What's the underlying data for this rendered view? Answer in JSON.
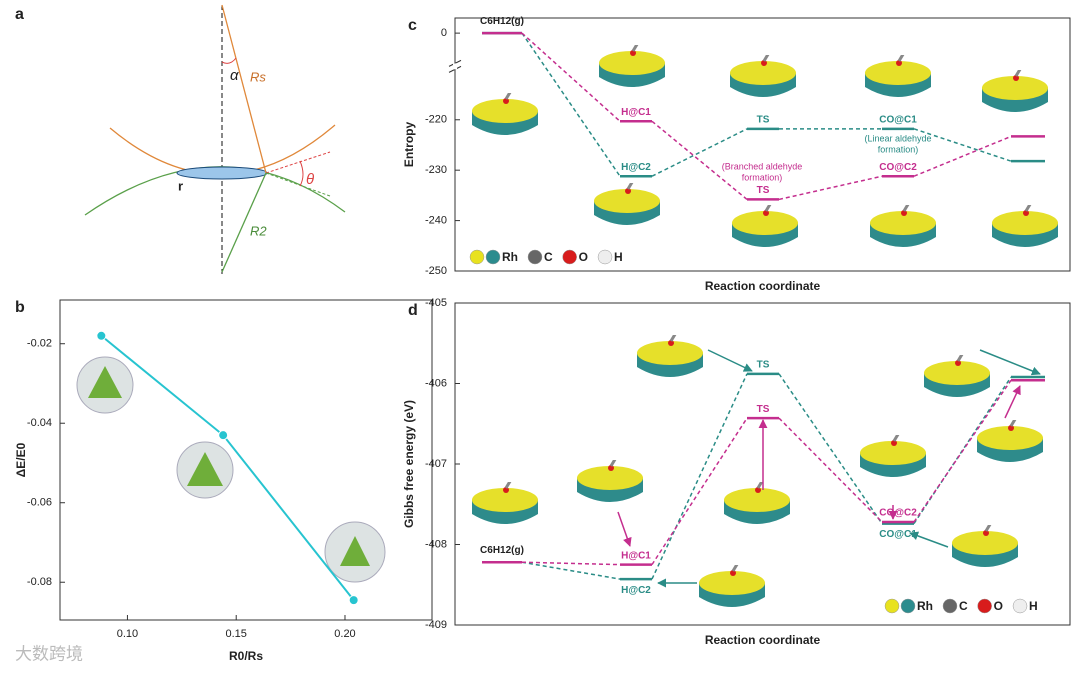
{
  "panel_a": {
    "label": "a",
    "alpha": "α",
    "Rs": "Rs",
    "theta": "θ",
    "r": "r",
    "R2": "R2"
  },
  "chart_data": [
    {
      "panel_label": "b",
      "type": "line",
      "x_label": "R0/Rs",
      "y_label": "ΔE/E0",
      "x": [
        0.088,
        0.144,
        0.204
      ],
      "values": [
        -0.018,
        -0.043,
        -0.0845
      ],
      "color": "#27c4d0",
      "xlim": [
        0.069,
        0.24
      ],
      "ylim": [
        -0.0895,
        -0.009
      ],
      "xticks": [
        {
          "value": 0.1,
          "label": "0.10"
        },
        0.15,
        {
          "value": 0.2,
          "label": "0.20"
        }
      ],
      "yticks": [
        -0.02,
        -0.04,
        -0.06,
        -0.08
      ]
    },
    {
      "panel_label": "c",
      "type": "energy-diagram",
      "y_label": "Entropy",
      "x_label": "Reaction coordinate",
      "ylim": [
        -250,
        3
      ],
      "ybreak": [
        -210,
        -6
      ],
      "yticks": [
        0,
        -220,
        -230,
        -240,
        -250
      ],
      "start_label": "C6H12(g)",
      "series": [
        {
          "color": "#2a8c86",
          "values": [
            0,
            -231.2,
            -221.8,
            -221.8,
            -228.2
          ],
          "level_labels": [
            null,
            "H@C2",
            "TS",
            "CO@C1",
            null
          ]
        },
        {
          "color": "#c42e8e",
          "values": [
            0,
            -220.3,
            -235.8,
            -231.2,
            -223.3
          ],
          "level_labels": [
            null,
            "H@C1",
            "TS",
            "CO@C2",
            null
          ]
        }
      ],
      "annotations": [
        [
          "(Branched aldehyde",
          "formation)"
        ],
        [
          "(Linear aldehyde",
          "formation)"
        ]
      ],
      "legend": [
        {
          "label": "Rh",
          "colors": [
            "#e8e21f",
            "#2c8c8e"
          ]
        },
        {
          "label": "C",
          "colors": [
            "#666666"
          ]
        },
        {
          "label": "O",
          "colors": [
            "#d81c1c"
          ]
        },
        {
          "label": "H",
          "colors": [
            "#eeeeee"
          ]
        }
      ]
    },
    {
      "panel_label": "d",
      "type": "energy-diagram",
      "y_label": "Gibbs free energy (eV)",
      "x_label": "Reaction coordinate",
      "ylim": [
        -409,
        -405
      ],
      "yticks": [
        -405,
        -406,
        -407,
        -408,
        -409
      ],
      "start_label": "C6H12(g)",
      "series": [
        {
          "color": "#2a8c86",
          "values": [
            -408.22,
            -408.43,
            -405.88,
            -407.74,
            -405.92
          ],
          "level_labels": [
            null,
            "H@C2",
            "TS",
            "CO@C1",
            null
          ]
        },
        {
          "color": "#c42e8e",
          "values": [
            -408.22,
            -408.25,
            -406.43,
            -407.72,
            -405.96
          ],
          "level_labels": [
            null,
            "H@C1",
            "TS",
            "CO@C2",
            null
          ]
        }
      ],
      "legend": [
        {
          "label": "Rh",
          "colors": [
            "#e8e21f",
            "#2c8c8e"
          ]
        },
        {
          "label": "C",
          "colors": [
            "#666666"
          ]
        },
        {
          "label": "O",
          "colors": [
            "#d81c1c"
          ]
        },
        {
          "label": "H",
          "colors": [
            "#eeeeee"
          ]
        }
      ]
    }
  ],
  "watermark": "大数跨境"
}
